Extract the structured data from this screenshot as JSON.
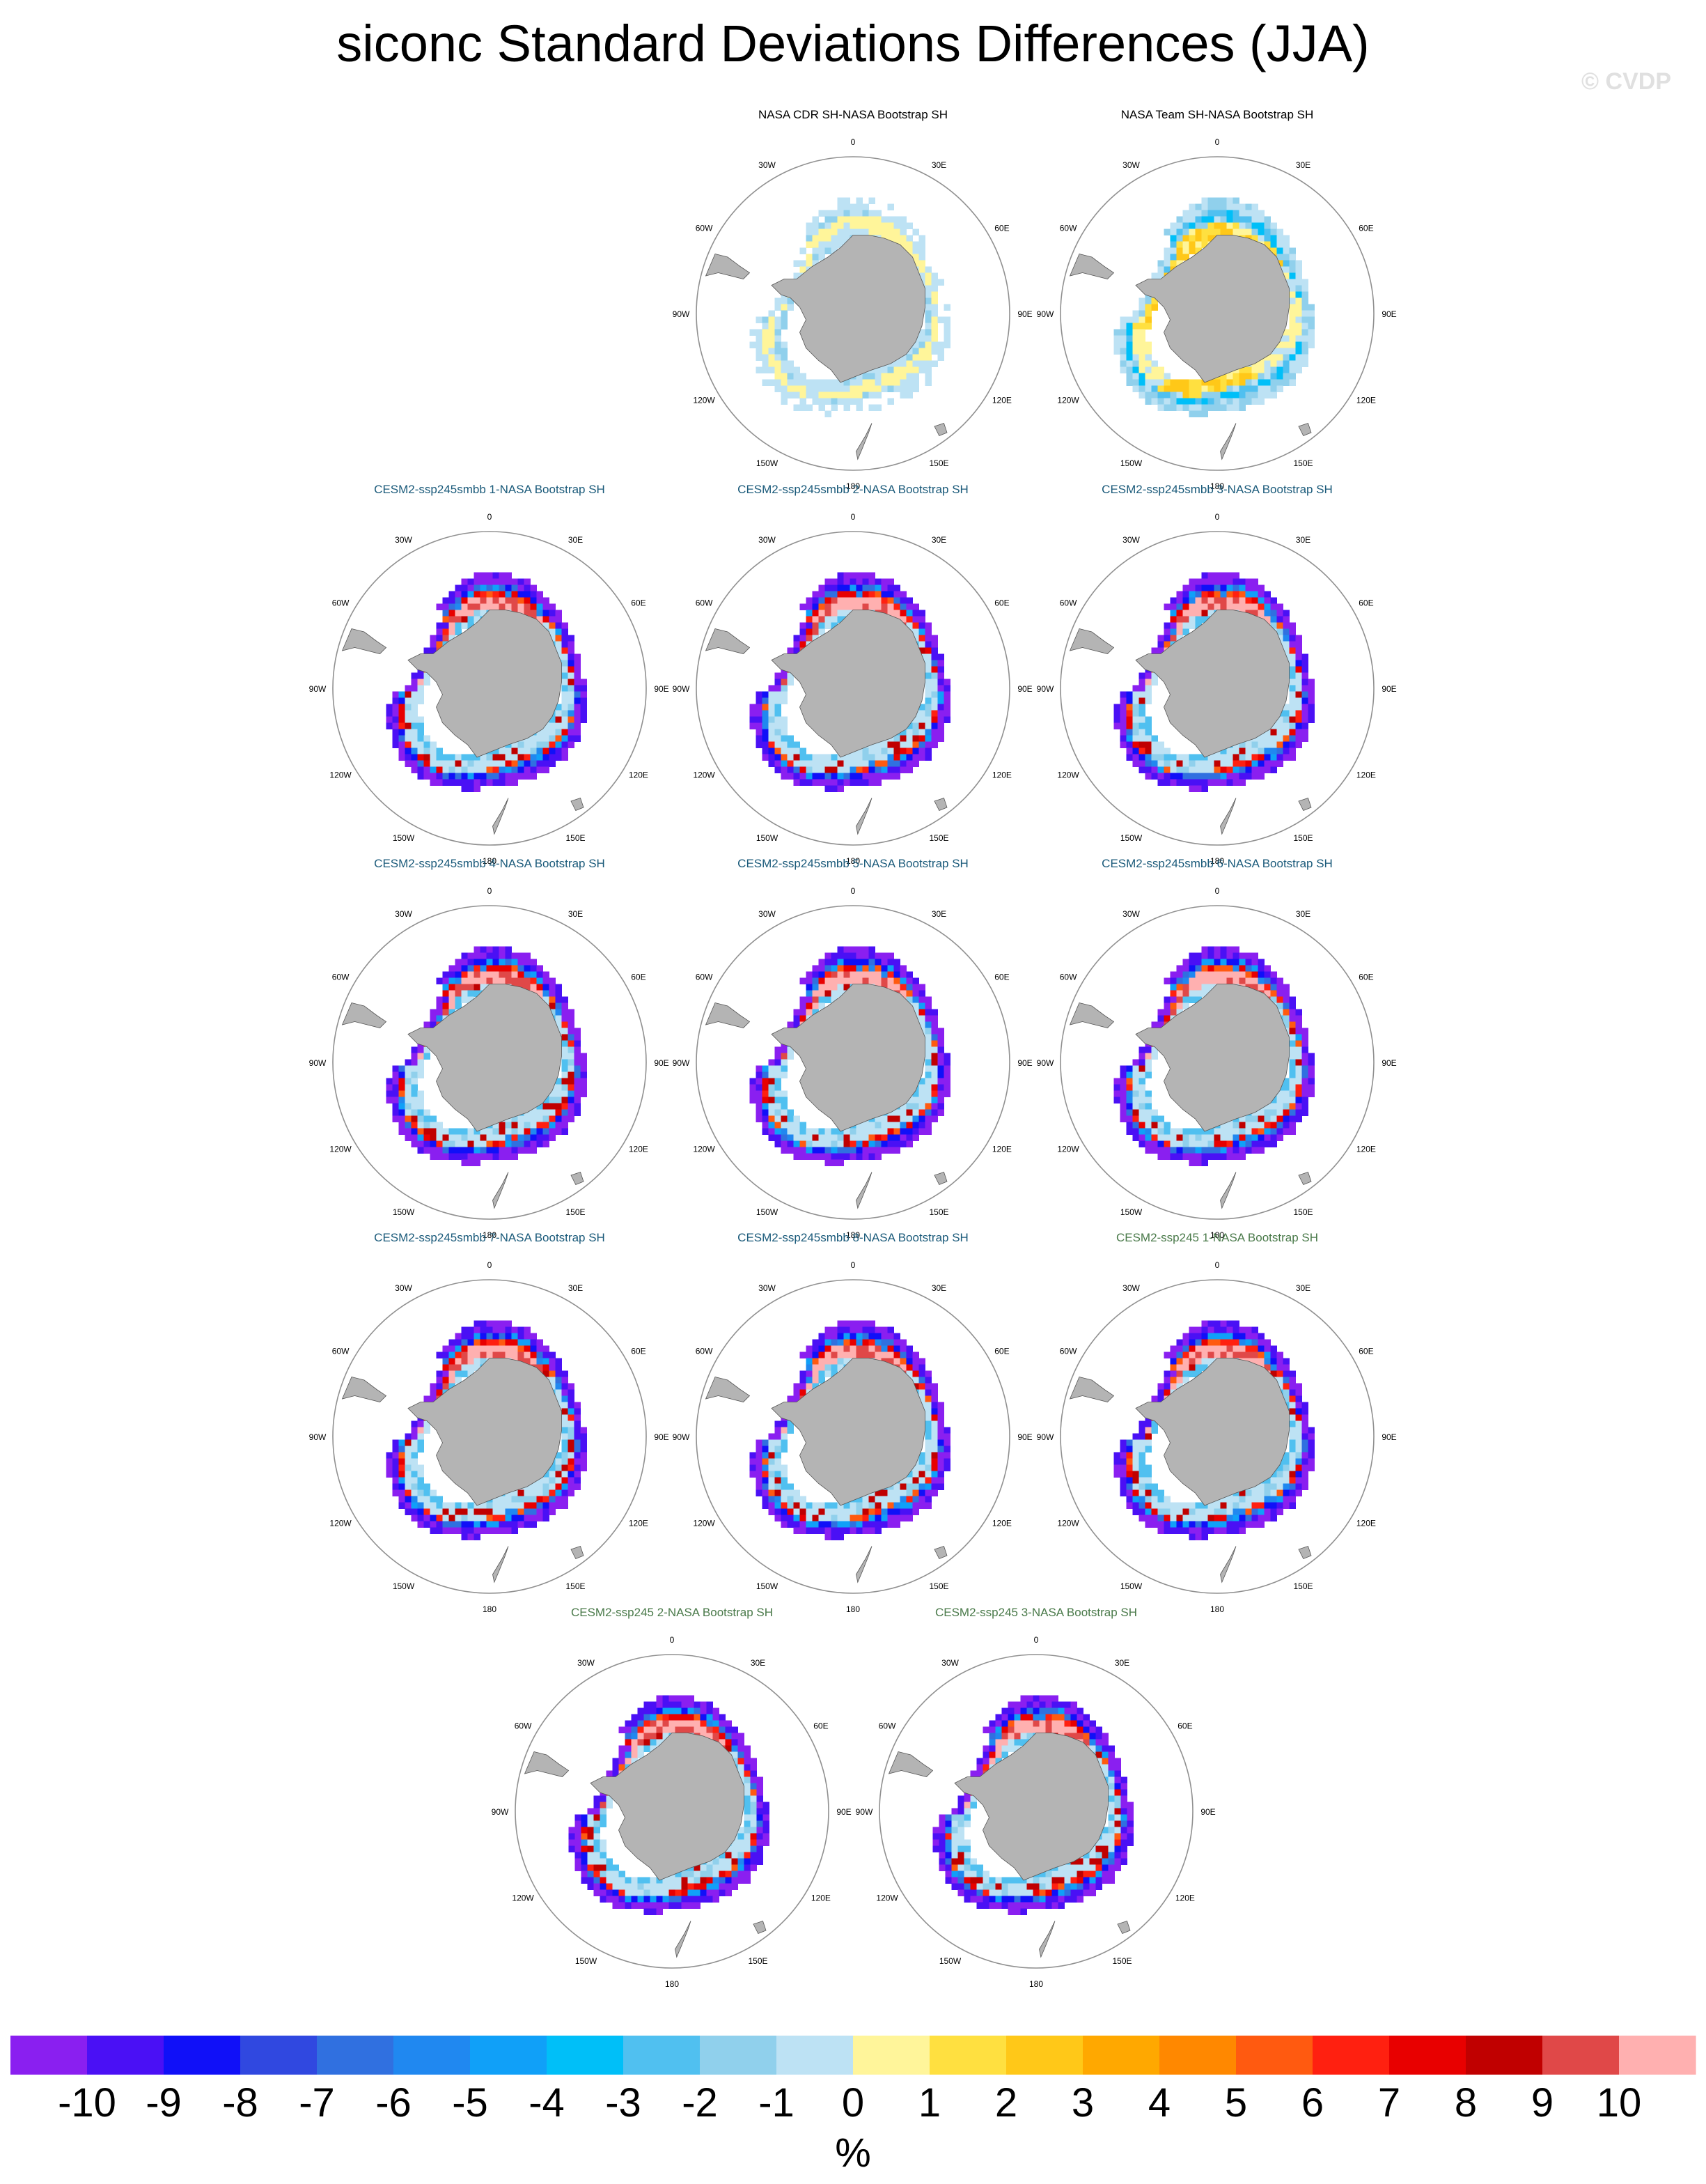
{
  "page": {
    "title": "siconc Standard Deviations Differences (JJA)",
    "watermark": "© CVDP"
  },
  "lon_labels": {
    "top": "0",
    "top_left": "30W",
    "top_right": "30E",
    "left_upper": "60W",
    "right_upper": "60E",
    "left": "90W",
    "right": "90E",
    "left_lower": "120W",
    "right_lower": "120E",
    "bottom_left": "150W",
    "bottom_right": "150E",
    "bottom": "180"
  },
  "colors": {
    "land": "#b4b4b4",
    "circle": "#909090",
    "panel_title_obs": "#000000",
    "panel_title_smbb": "#1a5a7a",
    "panel_title_ssp245": "#4a7a4a"
  },
  "chart_data": {
    "type": "heatmap",
    "projection": "south-polar stereographic",
    "season": "JJA",
    "variable": "siconc",
    "panels": [
      {
        "title": "NASA CDR SH-NASA Bootstrap SH",
        "group": "obs",
        "pattern": "cdr"
      },
      {
        "title": "NASA Team SH-NASA Bootstrap SH",
        "group": "obs",
        "pattern": "team"
      },
      {
        "title": "CESM2-ssp245smbb 1-NASA Bootstrap SH",
        "group": "smbb",
        "pattern": "model"
      },
      {
        "title": "CESM2-ssp245smbb 2-NASA Bootstrap SH",
        "group": "smbb",
        "pattern": "model"
      },
      {
        "title": "CESM2-ssp245smbb 3-NASA Bootstrap SH",
        "group": "smbb",
        "pattern": "model"
      },
      {
        "title": "CESM2-ssp245smbb 4-NASA Bootstrap SH",
        "group": "smbb",
        "pattern": "model"
      },
      {
        "title": "CESM2-ssp245smbb 5-NASA Bootstrap SH",
        "group": "smbb",
        "pattern": "model"
      },
      {
        "title": "CESM2-ssp245smbb 6-NASA Bootstrap SH",
        "group": "smbb",
        "pattern": "model"
      },
      {
        "title": "CESM2-ssp245smbb 7-NASA Bootstrap SH",
        "group": "smbb",
        "pattern": "model"
      },
      {
        "title": "CESM2-ssp245smbb 8-NASA Bootstrap SH",
        "group": "smbb",
        "pattern": "model"
      },
      {
        "title": "CESM2-ssp245 1-NASA Bootstrap SH",
        "group": "ssp245",
        "pattern": "model"
      },
      {
        "title": "CESM2-ssp245 2-NASA Bootstrap SH",
        "group": "ssp245",
        "pattern": "model"
      },
      {
        "title": "CESM2-ssp245 3-NASA Bootstrap SH",
        "group": "ssp245",
        "pattern": "model"
      }
    ],
    "colorbar": {
      "unit": "%",
      "labels": [
        "-10",
        "-9",
        "-8",
        "-7",
        "-6",
        "-5",
        "-4",
        "-3",
        "-2",
        "-1",
        "0",
        "1",
        "2",
        "3",
        "4",
        "5",
        "6",
        "7",
        "8",
        "9",
        "10"
      ],
      "colors": [
        "#8a1ff0",
        "#4a10f5",
        "#1010f8",
        "#3048e0",
        "#3070e0",
        "#2088f0",
        "#10a0f8",
        "#00bff8",
        "#50c0f0",
        "#90d0ec",
        "#bde2f4",
        "#fff59a",
        "#ffe040",
        "#ffc818",
        "#ffa800",
        "#ff8800",
        "#ff5a10",
        "#ff2010",
        "#e80000",
        "#c00000",
        "#e04848",
        "#ffb0b0"
      ]
    }
  }
}
